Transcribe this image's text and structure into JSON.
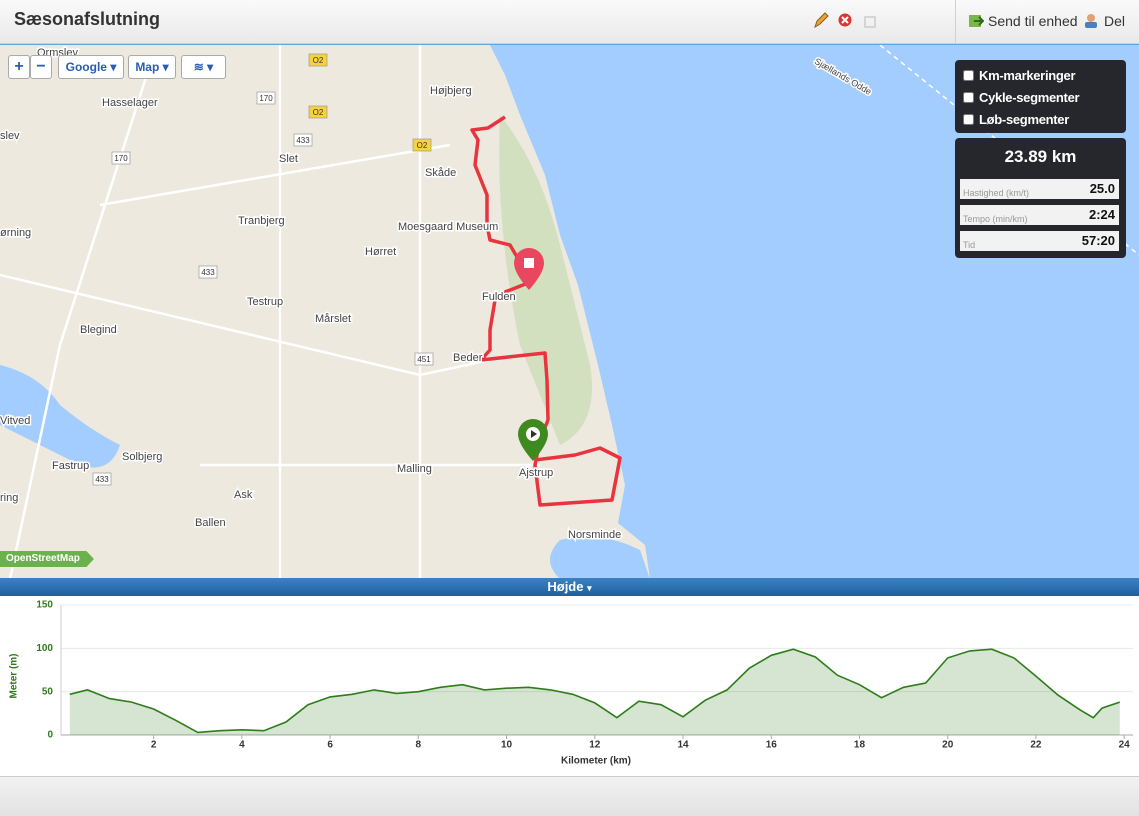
{
  "header": {
    "title": "Sæsonafslutning",
    "send": "Send til enhed",
    "share": "Del"
  },
  "map": {
    "controls": {
      "zoom_in": "+",
      "zoom_out": "−",
      "provider": "Google",
      "maptype": "Map"
    },
    "attribution": "OpenStreetMap",
    "labels": [
      "Ormslev",
      "Højbjerg",
      "Hasselager",
      "Slet",
      "Skåde",
      "slev",
      "Tranbjerg",
      "Moesgaard Museum",
      "ørning",
      "Hørret",
      "Fulden",
      "Testrup",
      "Mårslet",
      "Blegind",
      "Beder",
      "Vitved",
      "Solbjerg",
      "Fastrup",
      "Malling",
      "Ajstrup",
      "Ask",
      "Ballen",
      "Norsminde",
      "ring",
      "Sjællands Odde"
    ],
    "road_numbers": [
      "O2",
      "170",
      "O2",
      "433",
      "O2",
      "170",
      "433",
      "451",
      "433"
    ]
  },
  "panel": {
    "options": [
      "Km-markeringer",
      "Cykle-segmenter",
      "Løb-segmenter"
    ],
    "distance": "23.89 km",
    "stats": [
      {
        "label": "Hastighed (km/t)",
        "value": "25.0"
      },
      {
        "label": "Tempo (min/km)",
        "value": "2:24"
      },
      {
        "label": "Tid",
        "value": "57:20"
      }
    ]
  },
  "chart_data": {
    "type": "area",
    "title": "Højde",
    "y_label": "Meter (m)",
    "x_label": "Kilometer (km)",
    "x": [
      0.1,
      0.5,
      1,
      1.5,
      2,
      2.5,
      3,
      3.5,
      4,
      4.5,
      5,
      5.5,
      6,
      6.5,
      7,
      7.5,
      8,
      8.5,
      9,
      9.5,
      10,
      10.5,
      11,
      11.5,
      12,
      12.5,
      13,
      13.5,
      14,
      14.5,
      15,
      15.5,
      16,
      16.5,
      17,
      17.5,
      18,
      18.5,
      19,
      19.5,
      20,
      20.5,
      21,
      21.5,
      22,
      22.5,
      23,
      23.3,
      23.5,
      23.9
    ],
    "series": [
      {
        "name": "Højde",
        "color": "#2e7d1a",
        "values": [
          47,
          52,
          42,
          38,
          30,
          17,
          3,
          5,
          6,
          5,
          15,
          35,
          44,
          47,
          52,
          48,
          50,
          55,
          58,
          52,
          54,
          55,
          52,
          47,
          37,
          20,
          39,
          35,
          21,
          40,
          52,
          77,
          92,
          99,
          90,
          69,
          58,
          43,
          55,
          60,
          89,
          97,
          99,
          89,
          68,
          46,
          29,
          20,
          31,
          38
        ]
      }
    ],
    "xlim": [
      -0.1,
      24.2
    ],
    "ylim": [
      0,
      150
    ],
    "xticks": [
      2,
      4,
      6,
      8,
      10,
      12,
      14,
      16,
      18,
      20,
      22,
      24
    ],
    "yticks": [
      0,
      50,
      100,
      150
    ],
    "grid": true
  }
}
